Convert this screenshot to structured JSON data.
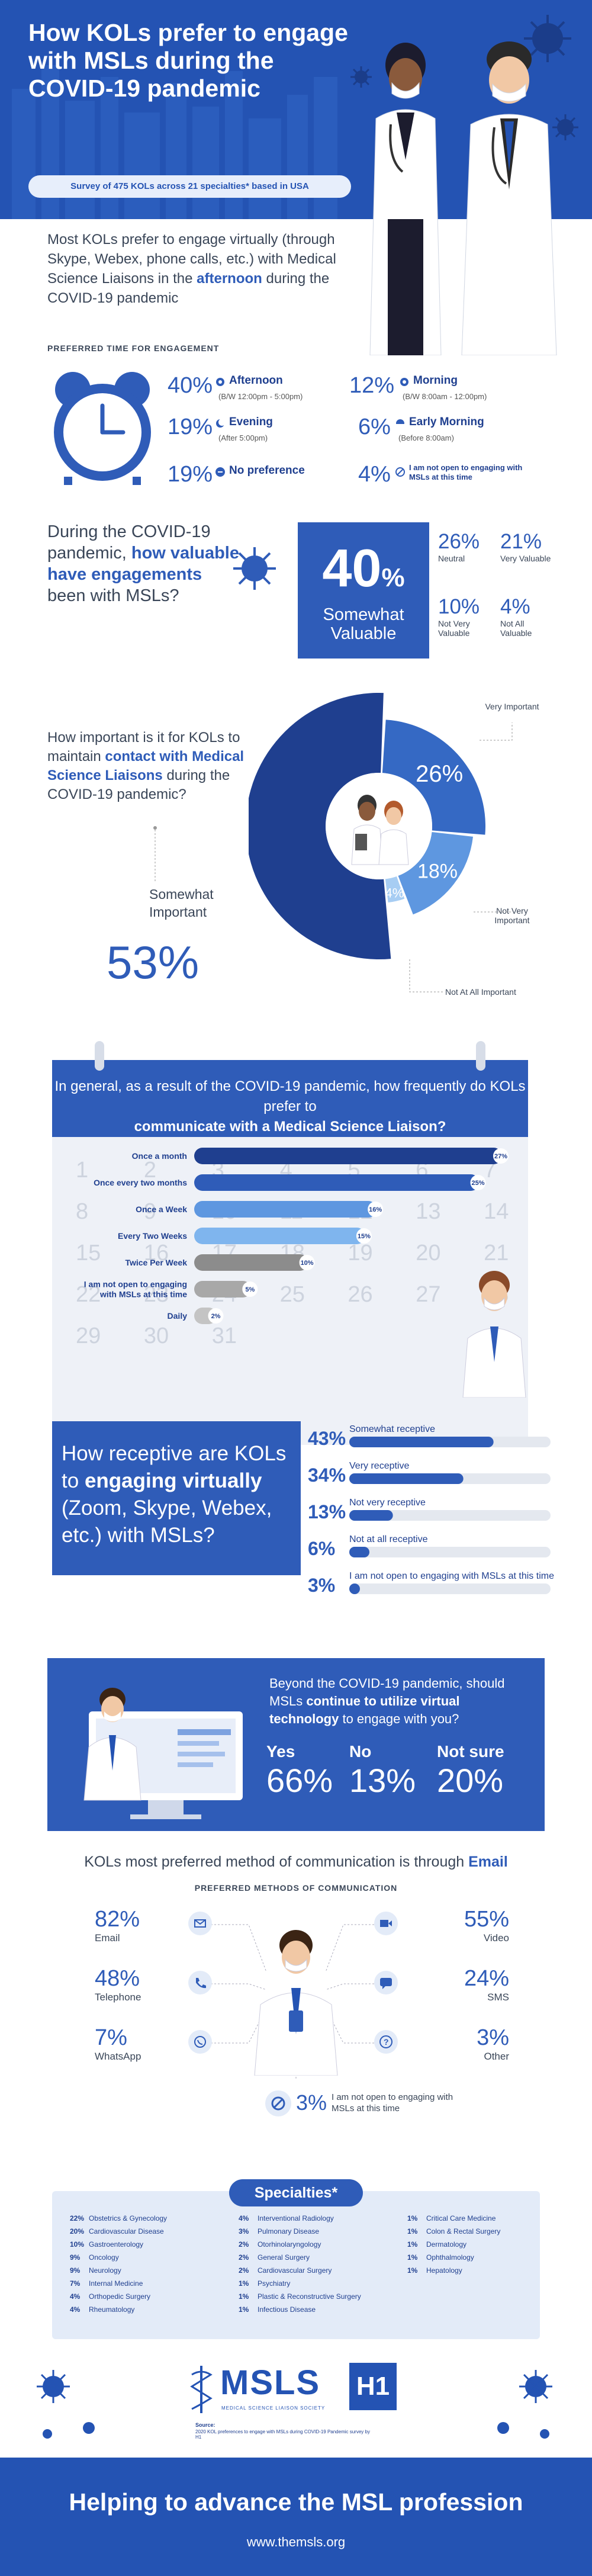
{
  "header": {
    "title": "How KOLs prefer to engage with MSLs during the COVID-19 pandemic",
    "subtitle": "Survey of 475 KOLs across 21 specialties* based in USA"
  },
  "time_section": {
    "intro_pre": "Most KOLs prefer to engage virtually (through Skype, Webex, phone calls, etc.) with Medical Science Liaisons in the",
    "intro_em": "afternoon",
    "intro_post": "during the COVID-19 pandemic",
    "label": "PREFERRED TIME FOR ENGAGEMENT",
    "options": [
      {
        "pct": "40%",
        "label": "Afternoon",
        "sub": "(B/W 12:00pm - 5:00pm)"
      },
      {
        "pct": "12%",
        "label": "Morning",
        "sub": "(B/W 8:00am - 12:00pm)"
      },
      {
        "pct": "19%",
        "label": "Evening",
        "sub": "(After 5:00pm)"
      },
      {
        "pct": "6%",
        "label": "Early Morning",
        "sub": "(Before 8:00am)"
      },
      {
        "pct": "19%",
        "label": "No preference",
        "sub": ""
      },
      {
        "pct": "4%",
        "label": "I am not open to engaging with MSLs at this time",
        "sub": ""
      }
    ]
  },
  "value_section": {
    "q_pre": "During the COVID-19 pandemic,",
    "q_em1": "how valuable have",
    "q_em2": "engagements",
    "q_post": "been with MSLs?",
    "big_pct": "40",
    "big_unit": "%",
    "big_label": "Somewhat Valuable",
    "others": [
      {
        "pct": "26%",
        "label": "Neutral"
      },
      {
        "pct": "21%",
        "label": "Very Valuable"
      },
      {
        "pct": "10%",
        "label": "Not Very Valuable"
      },
      {
        "pct": "4%",
        "label": "Not All Valuable"
      }
    ]
  },
  "importance_section": {
    "q_pre": "How important is it for KOLs to maintain",
    "q_em": "contact with Medical Science Liaisons",
    "q_post": "during the COVID-19 pandemic?",
    "big_label": "Somewhat Important",
    "big_pct": "53%",
    "slices": [
      {
        "label": "Somewhat Important",
        "value": 53,
        "color": "#1f3f8f"
      },
      {
        "label": "Very Important",
        "value": 26,
        "color": "#3569c4"
      },
      {
        "label": "Not Very Important",
        "value": 18,
        "color": "#5e97e0"
      },
      {
        "label": "Not At All Important",
        "value": 4,
        "color": "#a7cdf3"
      }
    ],
    "labels": {
      "very": "Very Important",
      "very_pct": "26%",
      "notvery": "Not Very Important",
      "notvery_pct": "18%",
      "notatall": "Not At All Important",
      "notatall_pct": "4%"
    }
  },
  "frequency_section": {
    "q": "In general, as a result of the COVID-19 pandemic, how frequently do KOLs prefer to",
    "q_em": "communicate with a Medical Science Liaison?",
    "calendar_numbers": [
      "1",
      "2",
      "3",
      "4",
      "5",
      "6",
      "7",
      "8",
      "9",
      "10",
      "11",
      "12",
      "13",
      "14",
      "15",
      "16",
      "17",
      "18",
      "19",
      "20",
      "21",
      "22",
      "23",
      "24",
      "25",
      "26",
      "27",
      "28",
      "29",
      "30",
      "31"
    ],
    "chart_data": {
      "type": "bar",
      "orientation": "horizontal",
      "categories": [
        "Once a month",
        "Once every two months",
        "Once a Week",
        "Every Two Weeks",
        "Twice Per Week",
        "I am not open to engaging with MSLs at this time",
        "Daily"
      ],
      "values": [
        27,
        25,
        16,
        15,
        10,
        5,
        2
      ],
      "value_labels": [
        "27%",
        "25%",
        "16%",
        "15%",
        "10%",
        "5%",
        "2%"
      ],
      "colors": [
        "#1f3f8f",
        "#2f5cb8",
        "#5e97e0",
        "#7fb5ee",
        "#8c8c8c",
        "#a8a8a8",
        "#c4c4c4"
      ],
      "xlim": [
        0,
        27
      ]
    }
  },
  "receptive_section": {
    "q_pre": "How receptive are KOLs to",
    "q_em": "engaging virtually",
    "q_post": "(Zoom, Skype, Webex, etc.) with MSLs?",
    "chart_data": {
      "type": "bar",
      "orientation": "horizontal",
      "categories": [
        "Somewhat receptive",
        "Very receptive",
        "Not very receptive",
        "Not at all receptive",
        "I am not open to engaging with MSLs at this time"
      ],
      "values": [
        43,
        34,
        13,
        6,
        3
      ],
      "value_labels": [
        "43%",
        "34%",
        "13%",
        "6%",
        "3%"
      ],
      "xlim": [
        0,
        60
      ]
    }
  },
  "beyond_section": {
    "q_pre": "Beyond the COVID-19 pandemic, should MSLs",
    "q_em": "continue to utilize virtual technology",
    "q_post": "to engage with you?",
    "answers": [
      {
        "label": "Yes",
        "pct": "66%"
      },
      {
        "label": "No",
        "pct": "13%"
      },
      {
        "label": "Not sure",
        "pct": "20%"
      }
    ]
  },
  "methods_section": {
    "title_pre": "KOLs most preferred method of communication is through",
    "title_em": "Email",
    "label": "PREFERRED METHODS OF COMMUNICATION",
    "left": [
      {
        "pct": "82%",
        "label": "Email",
        "icon": "email-icon"
      },
      {
        "pct": "48%",
        "label": "Telephone",
        "icon": "phone-icon"
      },
      {
        "pct": "7%",
        "label": "WhatsApp",
        "icon": "whatsapp-icon"
      }
    ],
    "right": [
      {
        "pct": "55%",
        "label": "Video",
        "icon": "video-icon"
      },
      {
        "pct": "24%",
        "label": "SMS",
        "icon": "sms-icon"
      },
      {
        "pct": "3%",
        "label": "Other",
        "icon": "question-icon"
      }
    ],
    "bottom": {
      "pct": "3%",
      "label": "I am not open to engaging with MSLs at this time"
    }
  },
  "specialties": {
    "title": "Specialties*",
    "col1": [
      {
        "pct": "22%",
        "name": "Obstetrics & Gynecology"
      },
      {
        "pct": "20%",
        "name": "Cardiovascular Disease"
      },
      {
        "pct": "10%",
        "name": "Gastroenterology"
      },
      {
        "pct": "9%",
        "name": "Oncology"
      },
      {
        "pct": "9%",
        "name": "Neurology"
      },
      {
        "pct": "7%",
        "name": "Internal Medicine"
      },
      {
        "pct": "4%",
        "name": "Orthopedic Surgery"
      },
      {
        "pct": "4%",
        "name": "Rheumatology"
      }
    ],
    "col2": [
      {
        "pct": "4%",
        "name": "Interventional Radiology"
      },
      {
        "pct": "3%",
        "name": "Pulmonary Disease"
      },
      {
        "pct": "2%",
        "name": "Otorhinolaryngology"
      },
      {
        "pct": "2%",
        "name": "General Surgery"
      },
      {
        "pct": "2%",
        "name": "Cardiovascular Surgery"
      },
      {
        "pct": "1%",
        "name": "Psychiatry"
      },
      {
        "pct": "1%",
        "name": "Plastic & Reconstructive Surgery"
      },
      {
        "pct": "1%",
        "name": "Infectious Disease"
      }
    ],
    "col3": [
      {
        "pct": "1%",
        "name": "Critical Care Medicine"
      },
      {
        "pct": "1%",
        "name": "Colon & Rectal Surgery"
      },
      {
        "pct": "1%",
        "name": "Dermatology"
      },
      {
        "pct": "1%",
        "name": "Ophthalmology"
      },
      {
        "pct": "1%",
        "name": "Hepatology"
      }
    ]
  },
  "logos": {
    "msls": "MSLS",
    "msls_sub": "MEDICAL SCIENCE LIAISON SOCIETY",
    "h1": "H1",
    "source_title": "Source:",
    "source_text": "2020 KOL preferences to engage with MSLs during COVID-19 Pandemic survey by H1"
  },
  "footer": {
    "tagline": "Helping to advance the MSL profession",
    "url": "www.themsls.org"
  }
}
